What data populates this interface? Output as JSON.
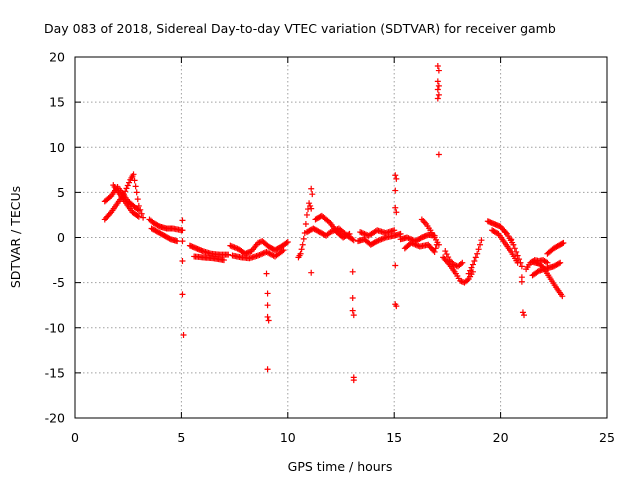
{
  "chart_data": {
    "type": "scatter",
    "title": "Day 083 of 2018, Sidereal Day-to-day VTEC variation (SDTVAR) for receiver gamb",
    "xlabel": "GPS time / hours",
    "ylabel": "SDTVAR / TECUs",
    "xlim": [
      0,
      25
    ],
    "ylim": [
      -20,
      20
    ],
    "xticks": [
      0,
      5,
      10,
      15,
      20,
      25
    ],
    "yticks": [
      -20,
      -15,
      -10,
      -5,
      0,
      5,
      10,
      15,
      20
    ],
    "grid": true,
    "marker": "+",
    "colors": {
      "series": "#ff0000",
      "grid": "#a0a0a0",
      "axes": "#000000"
    },
    "series": [
      {
        "name": "SDTVAR",
        "tracks": [
          [
            [
              1.4,
              4.0
            ],
            [
              1.7,
              4.6
            ],
            [
              2.0,
              5.6
            ],
            [
              2.2,
              5.0
            ],
            [
              2.5,
              4.0
            ],
            [
              2.8,
              3.4
            ],
            [
              3.0,
              3.0
            ]
          ],
          [
            [
              1.4,
              2.0
            ],
            [
              1.7,
              2.8
            ],
            [
              2.0,
              3.8
            ],
            [
              2.3,
              4.8
            ],
            [
              2.6,
              6.4
            ],
            [
              2.75,
              7.0
            ],
            [
              2.9,
              5.0
            ],
            [
              3.0,
              3.5
            ],
            [
              3.2,
              2.2
            ]
          ],
          [
            [
              1.8,
              5.8
            ],
            [
              2.1,
              4.8
            ],
            [
              2.4,
              3.8
            ],
            [
              2.7,
              2.8
            ],
            [
              3.0,
              2.3
            ]
          ],
          [
            [
              3.5,
              2.0
            ],
            [
              3.7,
              1.6
            ],
            [
              4.0,
              1.2
            ],
            [
              4.3,
              1.0
            ],
            [
              4.6,
              1.0
            ],
            [
              5.0,
              0.8
            ]
          ],
          [
            [
              3.6,
              1.0
            ],
            [
              3.9,
              0.6
            ],
            [
              4.2,
              0.2
            ],
            [
              4.5,
              -0.2
            ],
            [
              4.8,
              -0.4
            ]
          ],
          [
            [
              5.4,
              -0.9
            ],
            [
              5.7,
              -1.2
            ],
            [
              6.0,
              -1.5
            ],
            [
              6.4,
              -1.8
            ],
            [
              6.8,
              -1.9
            ],
            [
              7.2,
              -1.9
            ]
          ],
          [
            [
              5.6,
              -2.1
            ],
            [
              6.0,
              -2.2
            ],
            [
              6.5,
              -2.3
            ],
            [
              7.0,
              -2.5
            ]
          ],
          [
            [
              7.3,
              -0.9
            ],
            [
              7.7,
              -1.3
            ],
            [
              8.0,
              -1.8
            ],
            [
              8.3,
              -1.5
            ],
            [
              8.6,
              -0.6
            ],
            [
              8.8,
              -0.4
            ],
            [
              9.1,
              -1.0
            ],
            [
              9.4,
              -1.4
            ],
            [
              9.7,
              -1.0
            ],
            [
              10.0,
              -0.5
            ]
          ],
          [
            [
              7.4,
              -2.0
            ],
            [
              7.8,
              -2.2
            ],
            [
              8.2,
              -2.3
            ],
            [
              8.6,
              -2.0
            ],
            [
              9.0,
              -1.6
            ],
            [
              9.4,
              -2.1
            ],
            [
              9.8,
              -1.4
            ]
          ],
          [
            [
              10.5,
              -2.2
            ],
            [
              10.6,
              -1.8
            ],
            [
              10.7,
              -0.8
            ],
            [
              10.8,
              0.5
            ],
            [
              10.9,
              2.5
            ],
            [
              11.0,
              3.8
            ],
            [
              11.1,
              3.2
            ]
          ],
          [
            [
              10.9,
              0.6
            ],
            [
              11.2,
              1.0
            ],
            [
              11.5,
              0.6
            ],
            [
              11.8,
              0.2
            ],
            [
              12.0,
              0.6
            ],
            [
              12.4,
              1.0
            ],
            [
              12.8,
              0.2
            ],
            [
              13.1,
              -0.3
            ]
          ],
          [
            [
              11.3,
              2.0
            ],
            [
              11.6,
              2.4
            ],
            [
              12.0,
              1.6
            ],
            [
              12.3,
              0.6
            ],
            [
              12.6,
              0.0
            ],
            [
              12.9,
              0.4
            ]
          ],
          [
            [
              13.3,
              -0.4
            ],
            [
              13.6,
              -0.2
            ],
            [
              13.9,
              -0.8
            ],
            [
              14.2,
              -0.4
            ],
            [
              14.6,
              0.0
            ],
            [
              15.0,
              0.2
            ],
            [
              15.3,
              0.4
            ]
          ],
          [
            [
              13.4,
              0.6
            ],
            [
              13.8,
              0.2
            ],
            [
              14.2,
              0.8
            ],
            [
              14.6,
              0.5
            ],
            [
              15.0,
              0.8
            ]
          ],
          [
            [
              15.3,
              -0.2
            ],
            [
              15.6,
              0.0
            ],
            [
              16.0,
              -0.4
            ],
            [
              16.3,
              0.0
            ],
            [
              16.6,
              0.3
            ],
            [
              16.9,
              0.2
            ]
          ],
          [
            [
              15.5,
              -1.2
            ],
            [
              15.8,
              -0.6
            ],
            [
              16.2,
              -1.0
            ],
            [
              16.6,
              -0.8
            ],
            [
              16.9,
              -1.6
            ],
            [
              17.0,
              -0.8
            ]
          ],
          [
            [
              16.3,
              2.0
            ],
            [
              16.5,
              1.5
            ],
            [
              16.7,
              0.8
            ],
            [
              16.9,
              0.0
            ],
            [
              17.1,
              -0.8
            ]
          ],
          [
            [
              17.3,
              -2.2
            ],
            [
              17.6,
              -3.0
            ],
            [
              17.9,
              -4.0
            ],
            [
              18.1,
              -4.8
            ],
            [
              18.3,
              -5.0
            ],
            [
              18.5,
              -4.6
            ],
            [
              18.7,
              -3.8
            ]
          ],
          [
            [
              17.4,
              -1.5
            ],
            [
              17.6,
              -2.5
            ],
            [
              17.8,
              -3.0
            ],
            [
              18.0,
              -3.2
            ],
            [
              18.2,
              -2.8
            ]
          ],
          [
            [
              18.5,
              -4.0
            ],
            [
              18.7,
              -3.0
            ],
            [
              18.9,
              -1.8
            ],
            [
              19.1,
              -0.3
            ]
          ],
          [
            [
              19.4,
              1.8
            ],
            [
              19.7,
              1.5
            ],
            [
              20.0,
              1.2
            ],
            [
              20.3,
              0.4
            ],
            [
              20.6,
              -0.8
            ],
            [
              20.8,
              -2.0
            ],
            [
              21.0,
              -3.2
            ]
          ],
          [
            [
              19.6,
              0.8
            ],
            [
              19.9,
              0.4
            ],
            [
              20.2,
              -0.6
            ],
            [
              20.5,
              -1.6
            ],
            [
              20.8,
              -2.8
            ]
          ],
          [
            [
              21.2,
              -3.5
            ],
            [
              21.4,
              -2.8
            ],
            [
              21.6,
              -2.5
            ],
            [
              21.8,
              -2.6
            ],
            [
              22.0,
              -2.5
            ],
            [
              22.2,
              -2.8
            ]
          ],
          [
            [
              21.5,
              -4.2
            ],
            [
              21.8,
              -3.7
            ],
            [
              22.2,
              -3.4
            ],
            [
              22.5,
              -3.2
            ],
            [
              22.8,
              -2.8
            ]
          ],
          [
            [
              21.5,
              -2.7
            ],
            [
              21.8,
              -2.9
            ],
            [
              22.0,
              -3.3
            ],
            [
              22.3,
              -4.4
            ],
            [
              22.6,
              -5.5
            ],
            [
              22.9,
              -6.5
            ]
          ],
          [
            [
              22.2,
              -1.8
            ],
            [
              22.5,
              -1.2
            ],
            [
              22.8,
              -0.8
            ],
            [
              22.95,
              -0.6
            ]
          ]
        ],
        "points": [
          [
            5.05,
            1.9
          ],
          [
            5.05,
            0.8
          ],
          [
            5.05,
            -0.4
          ],
          [
            5.05,
            -2.6
          ],
          [
            5.05,
            -6.3
          ],
          [
            5.1,
            -10.8
          ],
          [
            9.0,
            -4.0
          ],
          [
            9.05,
            -6.2
          ],
          [
            9.05,
            -7.5
          ],
          [
            9.05,
            -8.8
          ],
          [
            9.1,
            -9.2
          ],
          [
            9.05,
            -14.6
          ],
          [
            11.1,
            5.4
          ],
          [
            11.15,
            4.8
          ],
          [
            11.1,
            -3.9
          ],
          [
            13.05,
            -3.8
          ],
          [
            13.05,
            -6.7
          ],
          [
            13.05,
            -8.1
          ],
          [
            13.1,
            -8.6
          ],
          [
            13.1,
            -15.5
          ],
          [
            13.1,
            -15.8
          ],
          [
            15.05,
            6.9
          ],
          [
            15.1,
            6.5
          ],
          [
            15.05,
            5.2
          ],
          [
            15.05,
            3.3
          ],
          [
            15.1,
            2.8
          ],
          [
            15.05,
            -3.1
          ],
          [
            15.05,
            -7.4
          ],
          [
            15.1,
            -7.6
          ],
          [
            17.05,
            19.0
          ],
          [
            17.1,
            18.5
          ],
          [
            17.05,
            17.3
          ],
          [
            17.1,
            16.8
          ],
          [
            17.05,
            16.4
          ],
          [
            17.1,
            15.8
          ],
          [
            17.05,
            15.4
          ],
          [
            17.1,
            9.2
          ],
          [
            20.2,
            0.6
          ],
          [
            20.5,
            -0.2
          ],
          [
            21.0,
            -4.4
          ],
          [
            21.0,
            -4.9
          ],
          [
            21.05,
            -8.3
          ],
          [
            21.1,
            -8.6
          ]
        ]
      }
    ]
  }
}
